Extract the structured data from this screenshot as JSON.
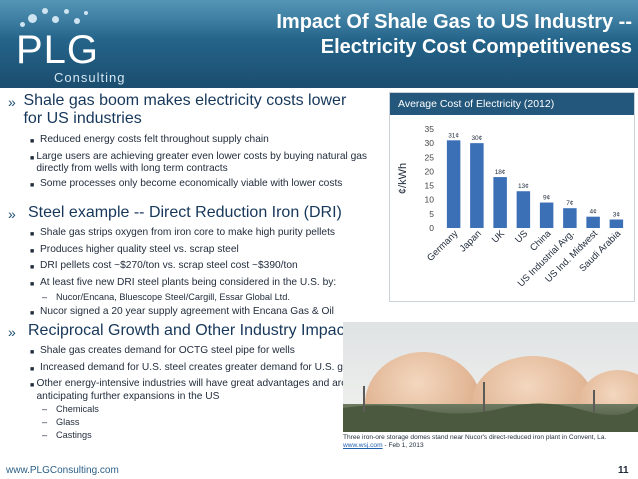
{
  "logo": {
    "text": "PLG",
    "subtext": "Consulting"
  },
  "title": {
    "line1": "Impact Of Shale Gas to US Industry --",
    "line2": "Electricity Cost Competitiveness"
  },
  "sections": [
    {
      "heading": "Shale gas boom makes electricity costs lower for US industries",
      "bullets": [
        {
          "text": "Reduced energy costs felt throughout supply chain",
          "sub": []
        },
        {
          "text": "Large users are achieving greater even lower costs by buying natural gas directly from wells with long term contracts",
          "sub": []
        },
        {
          "text": "Some processes only become economically viable with lower costs",
          "sub": []
        }
      ]
    },
    {
      "heading": "Steel example -- Direct Reduction Iron (DRI)",
      "bullets": [
        {
          "text": "Shale gas strips oxygen from iron core to make high purity pellets",
          "sub": []
        },
        {
          "text": "Produces higher quality steel vs. scrap steel",
          "sub": []
        },
        {
          "text": "DRI pellets cost ~$270/ton vs. scrap steel cost ~$390/ton",
          "sub": []
        },
        {
          "text": "At least five new DRI steel plants being considered in the U.S. by:",
          "sub": [
            "Nucor/Encana, Bluescope Steel/Cargill, Essar Global Ltd."
          ]
        },
        {
          "text": "Nucor signed a 20 year supply agreement with Encana Gas & Oil",
          "sub": []
        }
      ]
    },
    {
      "heading": "Reciprocal Growth and Other Industry Impacts",
      "bullets": [
        {
          "text": "Shale gas creates demand for OCTG steel pipe for wells",
          "sub": []
        },
        {
          "text": "Increased demand for U.S. steel creates greater demand for U.S. gas",
          "sub": []
        },
        {
          "text": "Other energy-intensive industries will have great advantages and are anticipating further expansions in the US",
          "sub": [
            "Chemicals",
            "Glass",
            "Castings"
          ]
        }
      ]
    }
  ],
  "chart_data": {
    "type": "bar",
    "title": "Average Cost of Electricity (2012)",
    "ylabel": "¢/kWh",
    "xlabel": "",
    "ylim": [
      0,
      35
    ],
    "yticks": [
      0,
      5,
      10,
      15,
      20,
      25,
      30,
      35
    ],
    "categories": [
      "Germany",
      "Japan",
      "UK",
      "US",
      "China",
      "US Industrial Avg.",
      "US Ind. Midwest",
      "Saudi Arabia"
    ],
    "values": [
      31,
      30,
      18,
      13,
      9,
      7,
      4,
      3
    ],
    "data_labels": [
      "31¢",
      "30¢",
      "18¢",
      "13¢",
      "9¢",
      "7¢",
      "4¢",
      "3¢"
    ],
    "bar_color": "#3b6fb6",
    "grid": false,
    "legend": "none"
  },
  "photo": {
    "caption": "Three iron-ore storage domes stand near Nucor's direct-reduced iron plant in Convent, La.",
    "source_link": "www.wsj.com",
    "source_date": " - Feb 1, 2013"
  },
  "footer": {
    "url": "www.PLGConsulting.com",
    "page": "11"
  },
  "colors": {
    "header": "#25648a",
    "accent": "#16375a",
    "bar": "#3b6fb6"
  }
}
